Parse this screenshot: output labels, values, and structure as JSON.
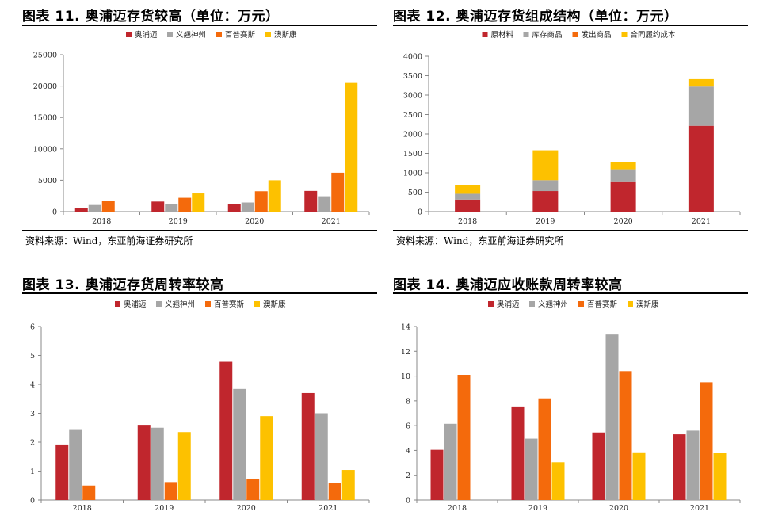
{
  "colors": {
    "red": "#c0262d",
    "gray": "#a6a6a6",
    "orange": "#f46a0c",
    "yellow": "#fdc100"
  },
  "source_text": "资料来源：Wind，东亚前海证券研究所",
  "chart_data": [
    {
      "title": "图表 11. 奥浦迈存货较高（单位：万元）",
      "type": "bar",
      "categories": [
        "2018",
        "2019",
        "2020",
        "2021"
      ],
      "series": [
        {
          "name": "奥浦迈",
          "color": "#c0262d",
          "values": [
            600,
            1600,
            1250,
            3300
          ]
        },
        {
          "name": "义翘神州",
          "color": "#a6a6a6",
          "values": [
            1050,
            1150,
            1450,
            2450
          ]
        },
        {
          "name": "百普赛斯",
          "color": "#f46a0c",
          "values": [
            1750,
            2200,
            3250,
            6200
          ]
        },
        {
          "name": "澳斯康",
          "color": "#fdc100",
          "values": [
            null,
            2900,
            5000,
            20500
          ]
        }
      ],
      "ylim": [
        0,
        25000
      ],
      "yticks": [
        0,
        5000,
        10000,
        15000,
        20000,
        25000
      ],
      "legend": "top-center",
      "grid": false
    },
    {
      "title": "图表 12. 奥浦迈存货组成结构（单位：万元）",
      "type": "stacked-bar",
      "categories": [
        "2018",
        "2019",
        "2020",
        "2021"
      ],
      "series": [
        {
          "name": "原材料",
          "color": "#c0262d",
          "values": [
            310,
            530,
            760,
            2210
          ]
        },
        {
          "name": "库存商品",
          "color": "#a6a6a6",
          "values": [
            150,
            280,
            330,
            1010
          ]
        },
        {
          "name": "发出商品",
          "color": "#f46a0c",
          "values": [
            0,
            0,
            0,
            0
          ]
        },
        {
          "name": "合同履约成本",
          "color": "#fdc100",
          "values": [
            230,
            770,
            180,
            190
          ]
        }
      ],
      "ylim": [
        0,
        4000
      ],
      "yticks": [
        0,
        500,
        1000,
        1500,
        2000,
        2500,
        3000,
        3500,
        4000
      ],
      "legend": "top-center",
      "grid": false
    },
    {
      "title": "图表 13. 奥浦迈存货周转率较高",
      "type": "bar",
      "categories": [
        "2018",
        "2019",
        "2020",
        "2021"
      ],
      "series": [
        {
          "name": "奥浦迈",
          "color": "#c0262d",
          "values": [
            1.92,
            2.6,
            4.78,
            3.7
          ]
        },
        {
          "name": "义翘神州",
          "color": "#a6a6a6",
          "values": [
            2.45,
            2.5,
            3.84,
            3.0
          ]
        },
        {
          "name": "百普赛斯",
          "color": "#f46a0c",
          "values": [
            0.5,
            0.62,
            0.74,
            0.6
          ]
        },
        {
          "name": "澳斯康",
          "color": "#fdc100",
          "values": [
            null,
            2.35,
            2.9,
            1.04
          ]
        }
      ],
      "ylim": [
        0,
        6
      ],
      "yticks": [
        0,
        1,
        2,
        3,
        4,
        5,
        6
      ],
      "legend": "top-center",
      "grid": false
    },
    {
      "title": "图表 14. 奥浦迈应收账款周转率较高",
      "type": "bar",
      "categories": [
        "2018",
        "2019",
        "2020",
        "2021"
      ],
      "series": [
        {
          "name": "奥浦迈",
          "color": "#c0262d",
          "values": [
            4.05,
            7.55,
            5.45,
            5.3
          ]
        },
        {
          "name": "义翘神州",
          "color": "#a6a6a6",
          "values": [
            6.15,
            4.95,
            13.35,
            5.6
          ]
        },
        {
          "name": "百普赛斯",
          "color": "#f46a0c",
          "values": [
            10.1,
            8.2,
            10.4,
            9.5
          ]
        },
        {
          "name": "澳斯康",
          "color": "#fdc100",
          "values": [
            null,
            3.05,
            3.85,
            3.8
          ]
        }
      ],
      "ylim": [
        0,
        14
      ],
      "yticks": [
        0,
        2,
        4,
        6,
        8,
        10,
        12,
        14
      ],
      "legend": "top-center",
      "grid": false
    }
  ]
}
